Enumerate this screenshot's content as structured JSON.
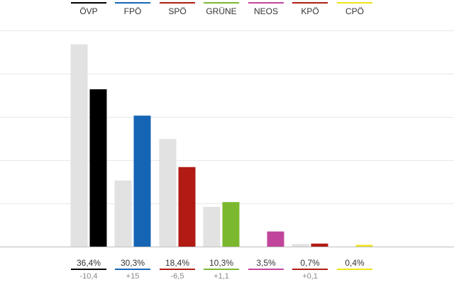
{
  "chart_data": {
    "type": "bar",
    "categories": [
      "ÖVP",
      "FPÖ",
      "SPÖ",
      "GRÜNE",
      "NEOS",
      "KPÖ",
      "CPÖ"
    ],
    "series": [
      {
        "values": [
          46.8,
          15.3,
          24.9,
          9.2,
          0,
          0.6,
          0
        ],
        "color": "#e2e2e2"
      },
      {
        "values": [
          36.4,
          30.3,
          18.4,
          10.3,
          3.5,
          0.7,
          0.4
        ]
      }
    ],
    "colors": [
      "#000000",
      "#1565b4",
      "#b11b14",
      "#7cb82f",
      "#c1459b",
      "#b11b14",
      "#f0e31a"
    ],
    "value_labels": [
      "36,4%",
      "30,3%",
      "18,4%",
      "10,3%",
      "3,5%",
      "0,7%",
      "0,4%"
    ],
    "change_labels": [
      "-10,4",
      "+15",
      "-6,5",
      "+1,1",
      "",
      "+0,1",
      ""
    ],
    "ylim": [
      0,
      50
    ],
    "grid": true
  }
}
